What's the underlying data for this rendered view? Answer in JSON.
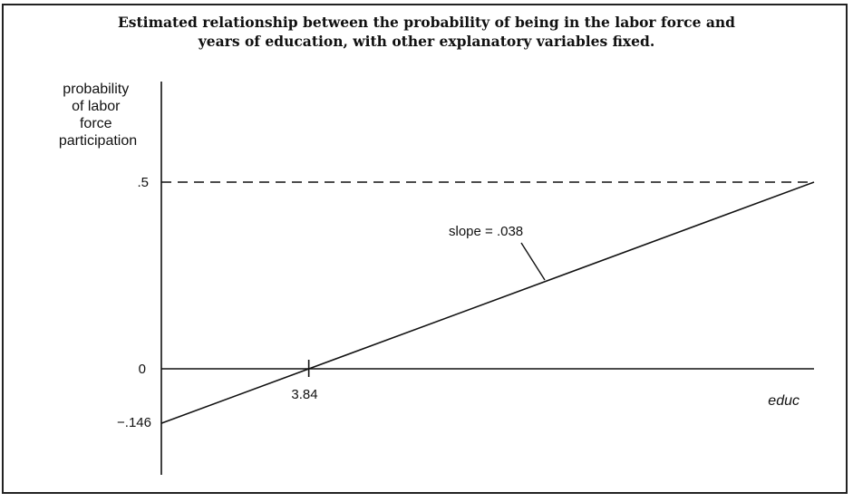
{
  "chart_data": {
    "type": "line",
    "title_lines": [
      "Estimated relationship between the probability of being in the labor force and",
      "years of education, with other explanatory variables fixed."
    ],
    "ylabel_lines": [
      "probability",
      "of labor",
      "force",
      "participation"
    ],
    "xlabel": "educ",
    "y_ticks": [
      {
        "value": 0.5,
        "label": ".5"
      },
      {
        "value": 0,
        "label": "0"
      },
      {
        "value": -0.146,
        "label": "−.146"
      }
    ],
    "x_ticks": [
      {
        "value": 3.84,
        "label": "3.84"
      }
    ],
    "line": {
      "intercept": -0.146,
      "slope": 0.038,
      "x_end": 17
    },
    "reference_line": {
      "y": 0.5,
      "style": "dashed"
    },
    "annotation": "slope = .038"
  }
}
